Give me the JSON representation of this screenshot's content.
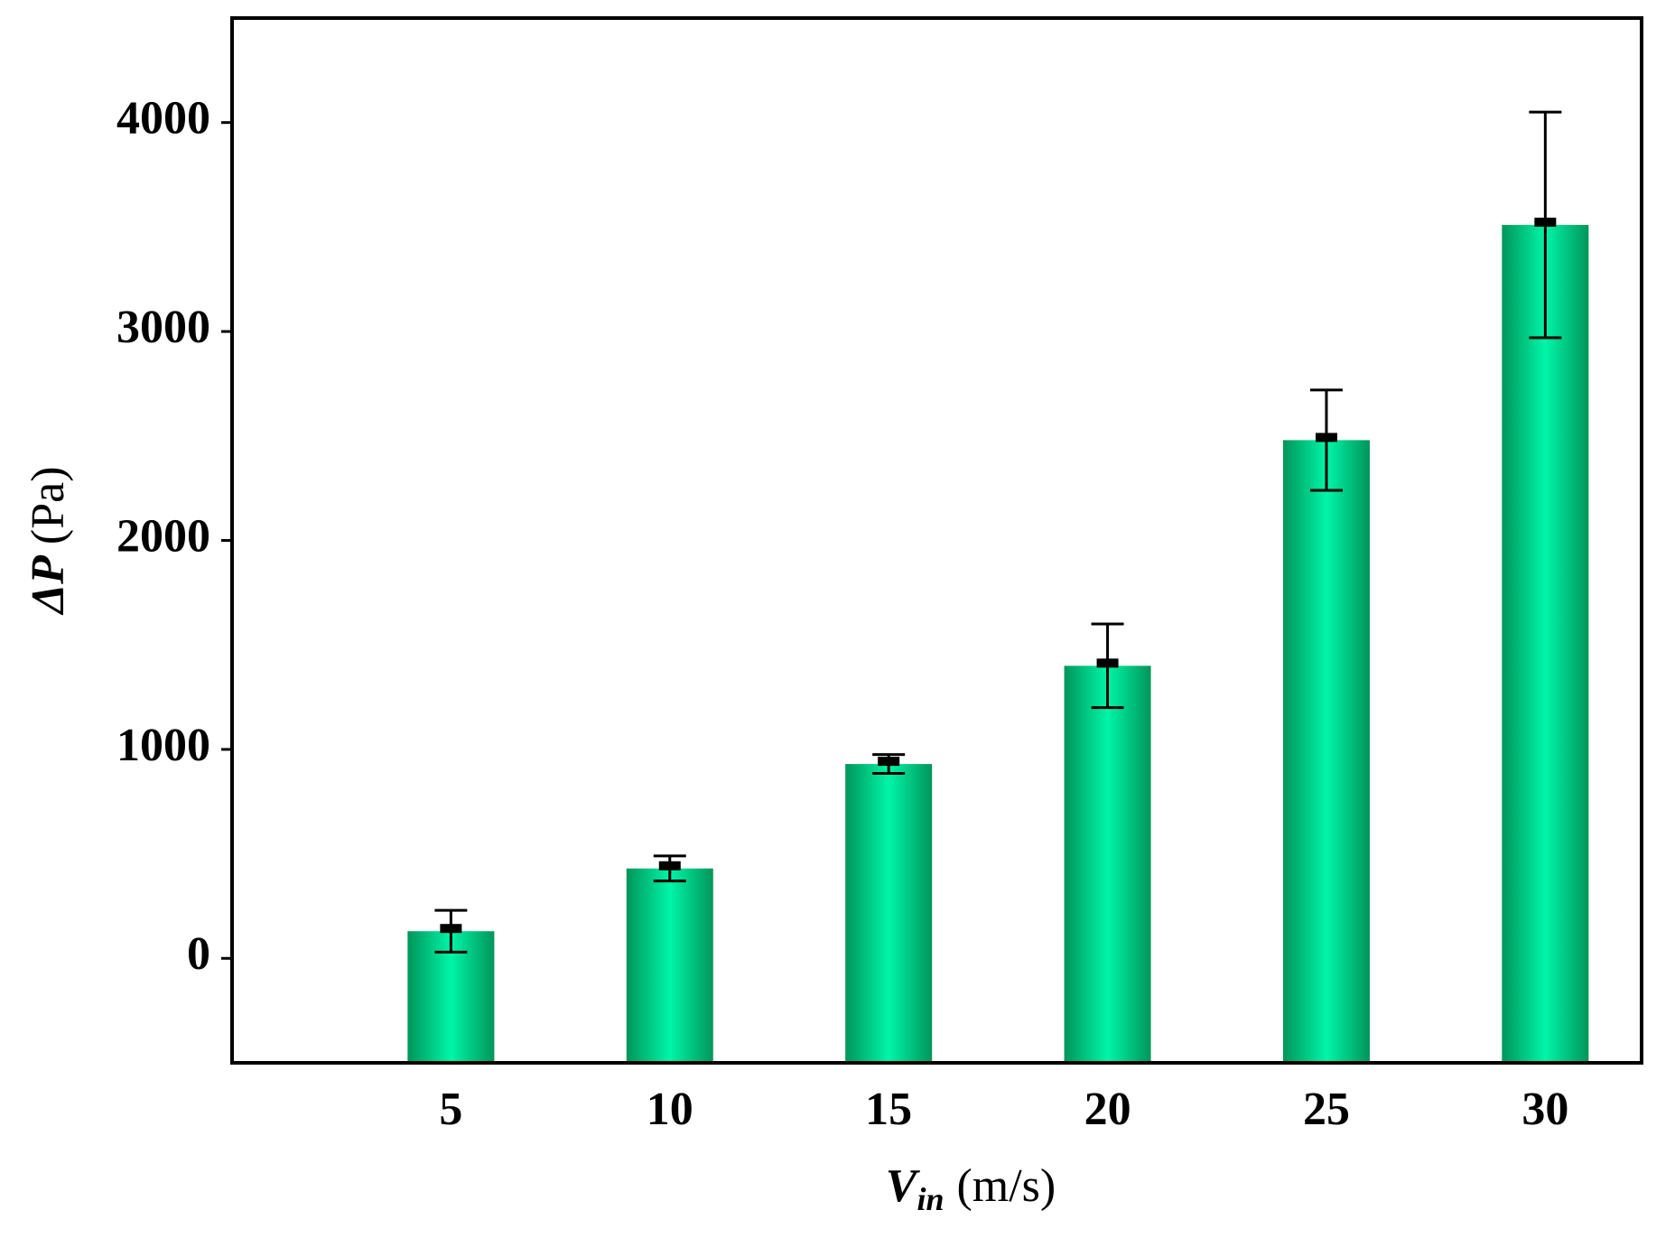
{
  "chart_data": {
    "type": "bar",
    "ylabel_symbol": "ΔP",
    "ylabel_unit": "(Pa)",
    "xlabel_symbol": "V",
    "xlabel_subscript": "in",
    "xlabel_unit": "(m/s)",
    "x": [
      5,
      10,
      15,
      20,
      25,
      30
    ],
    "values": [
      130,
      430,
      930,
      1400,
      2480,
      3510
    ],
    "errors": [
      100,
      60,
      45,
      200,
      240,
      540
    ],
    "color": "#00f5a8",
    "xlim": [
      0,
      32.2
    ],
    "xticks": [
      5,
      10,
      15,
      20,
      25,
      30
    ],
    "ylim": [
      -500,
      4500
    ],
    "yticks": [
      0,
      1000,
      2000,
      3000,
      4000
    ],
    "grid": false
  }
}
